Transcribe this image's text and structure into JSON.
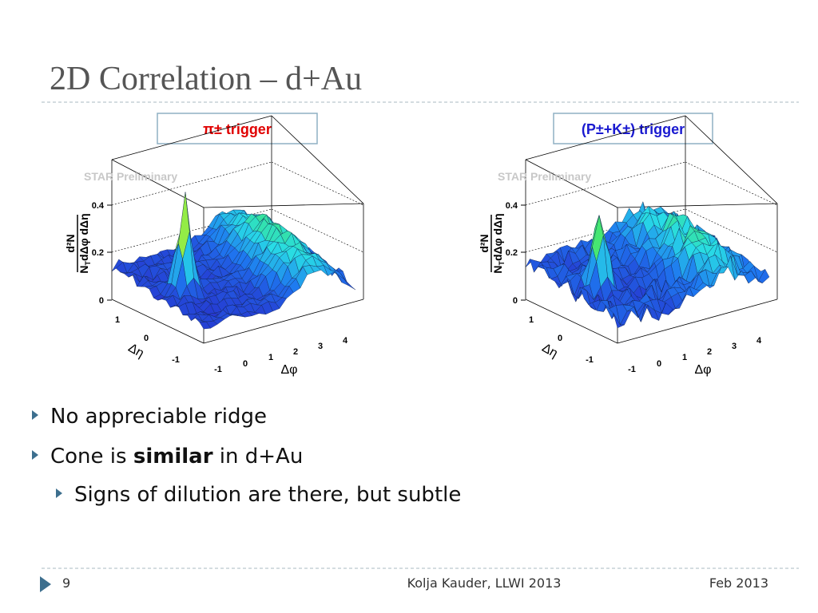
{
  "header": {
    "title": "2D Correlation – d+Au"
  },
  "panels": [
    {
      "trigger": "π± trigger",
      "trigger_color": "#e00000",
      "watermark": "STAR Preliminary",
      "z_label": {
        "numerator": "d²N",
        "denominator": [
          "N",
          "T",
          "dΔφ dΔη"
        ]
      },
      "z_ticks": [
        "0.4",
        "0.2",
        "0"
      ],
      "eta_label": "Δη",
      "eta_ticks": [
        "1",
        "0",
        "-1"
      ],
      "phi_label": "Δφ",
      "phi_ticks": [
        "-1",
        "0",
        "1",
        "2",
        "3",
        "4"
      ]
    },
    {
      "trigger": "(P±+K±) trigger",
      "trigger_color": "#1a1ad0",
      "watermark": "STAR Preliminary",
      "z_label": {
        "numerator": "d²N",
        "denominator": [
          "N",
          "T",
          "dΔφ dΔη"
        ]
      },
      "z_ticks": [
        "0.4",
        "0.2",
        "0"
      ],
      "eta_label": "Δη",
      "eta_ticks": [
        "1",
        "0",
        "-1"
      ],
      "phi_label": "Δφ",
      "phi_ticks": [
        "-1",
        "0",
        "1",
        "2",
        "3",
        "4"
      ]
    }
  ],
  "bullets": [
    {
      "parts": [
        "No appreciable ridge"
      ],
      "level": 1
    },
    {
      "parts": [
        "Cone is ",
        "similar",
        " in d+Au"
      ],
      "level": 1,
      "bold_part": 1
    },
    {
      "parts": [
        "Signs of dilution are there, but subtle"
      ],
      "level": 2
    }
  ],
  "footer": {
    "page": "9",
    "author": "Kolja Kauder, LLWI 2013",
    "date": "Feb 2013"
  }
}
